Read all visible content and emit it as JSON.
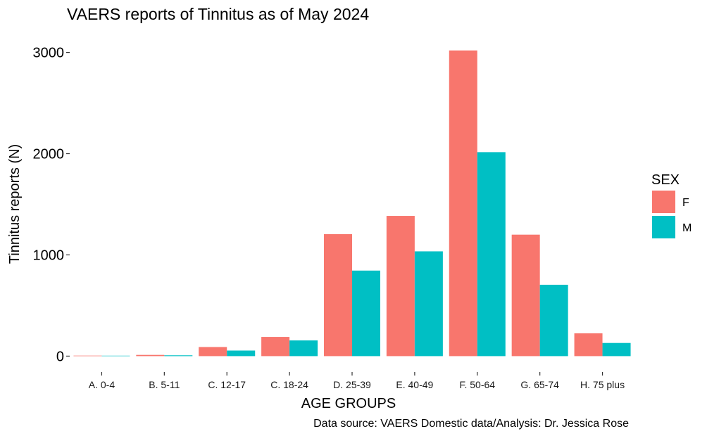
{
  "chart_data": {
    "type": "bar",
    "title": "VAERS reports of Tinnitus as of May 2024",
    "xlabel": "AGE GROUPS",
    "ylabel": "Tinnitus reports (N)",
    "caption": "Data source: VAERS Domestic data/Analysis: Dr. Jessica Rose",
    "categories": [
      "A. 0-4",
      "B. 5-11",
      "C. 12-17",
      "C. 18-24",
      "D. 25-39",
      "E. 40-49",
      "F. 50-64",
      "G. 65-74",
      "H. 75 plus"
    ],
    "series": [
      {
        "name": "F",
        "color": "#F8766D",
        "values": [
          5,
          12,
          90,
          190,
          1205,
          1385,
          3020,
          1200,
          225
        ]
      },
      {
        "name": "M",
        "color": "#00BFC4",
        "values": [
          3,
          8,
          55,
          155,
          845,
          1035,
          2015,
          705,
          130
        ]
      }
    ],
    "yticks": [
      0,
      1000,
      2000,
      3000
    ],
    "ylim": [
      -150,
      3150
    ],
    "grid": false,
    "legend": {
      "title": "SEX",
      "position": "right"
    }
  }
}
